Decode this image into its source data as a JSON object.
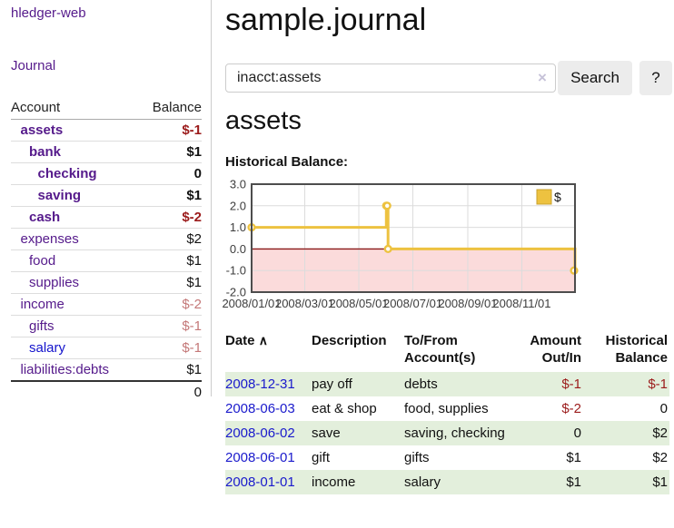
{
  "sidebar": {
    "brand": "hledger-web",
    "nav": {
      "journal": "Journal"
    },
    "accounts_table": {
      "headers": {
        "account": "Account",
        "balance": "Balance"
      },
      "rows": [
        {
          "account": "assets",
          "indent": 1,
          "bold": true,
          "balance": "$-1",
          "neg": "strong",
          "link": "purple"
        },
        {
          "account": "bank",
          "indent": 2,
          "bold": true,
          "balance": "$1",
          "neg": "none",
          "link": "purple"
        },
        {
          "account": "checking",
          "indent": 3,
          "bold": true,
          "balance": "0",
          "neg": "none",
          "link": "purple"
        },
        {
          "account": "saving",
          "indent": 3,
          "bold": true,
          "balance": "$1",
          "neg": "none",
          "link": "purple"
        },
        {
          "account": "cash",
          "indent": 2,
          "bold": true,
          "balance": "$-2",
          "neg": "strong",
          "link": "purple"
        },
        {
          "account": "expenses",
          "indent": 1,
          "bold": false,
          "balance": "$2",
          "neg": "none",
          "link": "purple"
        },
        {
          "account": "food",
          "indent": 2,
          "bold": false,
          "balance": "$1",
          "neg": "none",
          "link": "purple"
        },
        {
          "account": "supplies",
          "indent": 2,
          "bold": false,
          "balance": "$1",
          "neg": "none",
          "link": "purple"
        },
        {
          "account": "income",
          "indent": 1,
          "bold": false,
          "balance": "$-2",
          "neg": "soft",
          "link": "purple"
        },
        {
          "account": "gifts",
          "indent": 2,
          "bold": false,
          "balance": "$-1",
          "neg": "soft",
          "link": "purple"
        },
        {
          "account": "salary",
          "indent": 2,
          "bold": false,
          "balance": "$-1",
          "neg": "soft",
          "link": "blue"
        },
        {
          "account": "liabilities:debts",
          "indent": 1,
          "bold": false,
          "balance": "$1",
          "neg": "none",
          "link": "purple"
        }
      ],
      "total": "0"
    }
  },
  "header": {
    "title": "sample.journal"
  },
  "search": {
    "value": "inacct:assets",
    "clear_icon": "×",
    "button_label": "Search",
    "help_label": "?"
  },
  "account_page": {
    "heading": "assets",
    "chart_title": "Historical Balance:"
  },
  "chart_data": {
    "type": "line",
    "step": true,
    "series": [
      {
        "name": "$",
        "color": "#edc240",
        "points": [
          {
            "date": "2008-01-01",
            "value": 1
          },
          {
            "date": "2008-06-01",
            "value": 2
          },
          {
            "date": "2008-06-02",
            "value": 2
          },
          {
            "date": "2008-06-03",
            "value": 0
          },
          {
            "date": "2008-12-31",
            "value": -1
          }
        ]
      }
    ],
    "x_ticks": [
      {
        "date": "2008-01-01",
        "label": "2008/01/01"
      },
      {
        "date": "2008-03-01",
        "label": "2008/03/01"
      },
      {
        "date": "2008-05-01",
        "label": "2008/05/01"
      },
      {
        "date": "2008-07-01",
        "label": "2008/07/01"
      },
      {
        "date": "2008-09-01",
        "label": "2008/09/01"
      },
      {
        "date": "2008-11-01",
        "label": "2008/11/01"
      }
    ],
    "y_ticks": [
      3.0,
      2.0,
      1.0,
      0.0,
      -1.0,
      -2.0
    ],
    "xlim": [
      "2008-01-01",
      "2008-12-31"
    ],
    "ylim": [
      -2,
      3
    ],
    "legend_position": "top-right",
    "grid": true,
    "colors": {
      "negative_region": "#fbdbdb",
      "zero_line": "#8b1a1a",
      "grid": "#dcdcdc",
      "border": "#4d4d4d",
      "axis_text": "#3d3d3d",
      "marker_fill": "#ffffff"
    }
  },
  "register_table": {
    "headers": {
      "date": "Date",
      "sort_arrow": "∧",
      "description": "Description",
      "accounts_line1": "To/From",
      "accounts_line2": "Account(s)",
      "amount_line1": "Amount",
      "amount_line2": "Out/In",
      "balance_line1": "Historical",
      "balance_line2": "Balance"
    },
    "rows": [
      {
        "date": "2008-12-31",
        "description": "pay off",
        "accounts": "debts",
        "amount": "$-1",
        "amount_neg": true,
        "balance": "$-1",
        "balance_neg": true,
        "shaded": true
      },
      {
        "date": "2008-06-03",
        "description": "eat & shop",
        "accounts": "food, supplies",
        "amount": "$-2",
        "amount_neg": true,
        "balance": "0",
        "balance_neg": false,
        "shaded": false
      },
      {
        "date": "2008-06-02",
        "description": "save",
        "accounts": "saving, checking",
        "amount": "0",
        "amount_neg": false,
        "balance": "$2",
        "balance_neg": false,
        "shaded": true
      },
      {
        "date": "2008-06-01",
        "description": "gift",
        "accounts": "gifts",
        "amount": "$1",
        "amount_neg": false,
        "balance": "$2",
        "balance_neg": false,
        "shaded": false
      },
      {
        "date": "2008-01-01",
        "description": "income",
        "accounts": "salary",
        "amount": "$1",
        "amount_neg": false,
        "balance": "$1",
        "balance_neg": false,
        "shaded": true
      }
    ]
  }
}
